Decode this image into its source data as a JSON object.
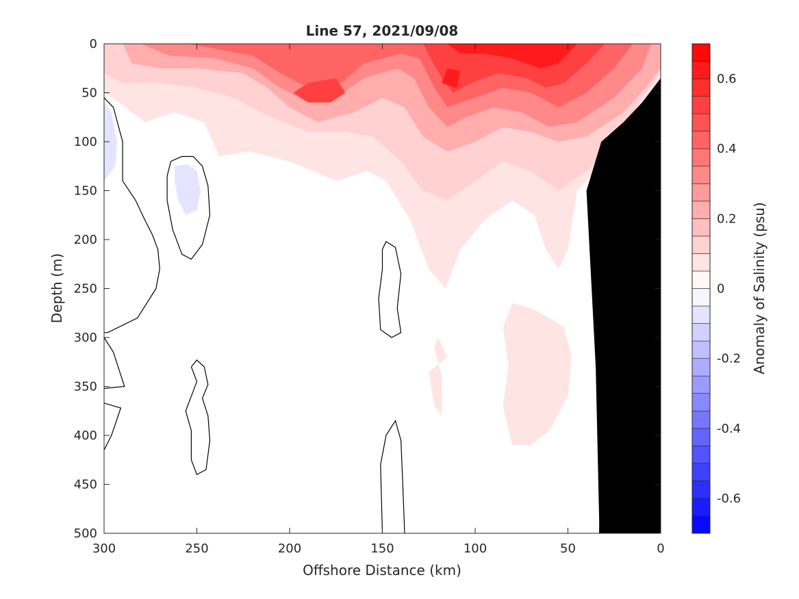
{
  "chart_data": {
    "type": "heatmap",
    "title": "Line 57, 2021/09/08",
    "xlabel": "Offshore Distance (km)",
    "ylabel": "Depth (m)",
    "colorbar_label": "Anomaly of Salinity (psu)",
    "xlim": [
      300,
      0
    ],
    "ylim": [
      500,
      0
    ],
    "x_reversed": true,
    "y_reversed": true,
    "xticks": [
      300,
      250,
      200,
      150,
      100,
      50,
      0
    ],
    "xtick_labels": [
      "300",
      "250",
      "200",
      "150",
      "100",
      "50",
      "0"
    ],
    "yticks": [
      0,
      50,
      100,
      150,
      200,
      250,
      300,
      350,
      400,
      450,
      500
    ],
    "ytick_labels": [
      "0",
      "50",
      "100",
      "150",
      "200",
      "250",
      "300",
      "350",
      "400",
      "450",
      "500"
    ],
    "colorbar": {
      "range": [
        -0.7,
        0.7
      ],
      "step": 0.05,
      "ticks": [
        -0.6,
        -0.4,
        -0.2,
        0,
        0.2,
        0.4,
        0.6
      ],
      "tick_labels": [
        "-0.6",
        "-0.4",
        "-0.2",
        "0",
        "0.2",
        "0.4",
        "0.6"
      ],
      "colormap": "blue-white-red",
      "neg_color": "#0000ff",
      "pos_color": "#ff0000",
      "zero_color": "#ffffff"
    },
    "bathymetry_color": "#000000",
    "contour_color": "#000000",
    "bathymetry": [
      [
        33,
        500
      ],
      [
        35,
        330
      ],
      [
        40,
        150
      ],
      [
        32,
        100
      ],
      [
        20,
        80
      ],
      [
        10,
        60
      ],
      [
        0,
        35
      ],
      [
        0,
        500
      ]
    ],
    "zero_contours": [
      [
        [
          300,
          55
        ],
        [
          295,
          65
        ],
        [
          290,
          100
        ],
        [
          290,
          140
        ],
        [
          283,
          160
        ],
        [
          278,
          180
        ],
        [
          274,
          195
        ],
        [
          271,
          210
        ],
        [
          270,
          230
        ],
        [
          272,
          250
        ],
        [
          282,
          280
        ],
        [
          298,
          295
        ],
        [
          300,
          295
        ]
      ],
      [
        [
          264,
          120
        ],
        [
          258,
          115
        ],
        [
          252,
          115
        ],
        [
          247,
          125
        ],
        [
          244,
          145
        ],
        [
          243,
          175
        ],
        [
          247,
          205
        ],
        [
          253,
          220
        ],
        [
          258,
          215
        ],
        [
          263,
          190
        ],
        [
          266,
          160
        ],
        [
          266,
          135
        ],
        [
          264,
          120
        ]
      ],
      [
        [
          253,
          330
        ],
        [
          250,
          345
        ],
        [
          253,
          360
        ],
        [
          256,
          375
        ],
        [
          253,
          395
        ],
        [
          253,
          425
        ],
        [
          250,
          440
        ],
        [
          245,
          435
        ],
        [
          243,
          405
        ],
        [
          244,
          380
        ],
        [
          247,
          362
        ],
        [
          244,
          348
        ],
        [
          246,
          330
        ],
        [
          250,
          323
        ],
        [
          253,
          330
        ]
      ],
      [
        [
          300,
          300
        ],
        [
          295,
          315
        ],
        [
          289,
          350
        ],
        [
          300,
          352
        ]
      ],
      [
        [
          300,
          367
        ],
        [
          291,
          372
        ],
        [
          296,
          400
        ],
        [
          300,
          415
        ]
      ],
      [
        [
          150,
          210
        ],
        [
          148,
          202
        ],
        [
          143,
          208
        ],
        [
          140,
          235
        ],
        [
          142,
          270
        ],
        [
          140,
          295
        ],
        [
          145,
          300
        ],
        [
          151,
          292
        ],
        [
          152,
          260
        ],
        [
          150,
          230
        ],
        [
          150,
          210
        ]
      ],
      [
        [
          150,
          500
        ],
        [
          151,
          430
        ],
        [
          148,
          400
        ],
        [
          143,
          385
        ],
        [
          140,
          405
        ],
        [
          139,
          450
        ],
        [
          138,
          500
        ]
      ],
      [
        [
          33,
          500
        ],
        [
          32,
          420
        ],
        [
          32,
          300
        ],
        [
          33,
          230
        ],
        [
          32,
          160
        ],
        [
          35,
          120
        ],
        [
          25,
          100
        ],
        [
          18,
          95
        ],
        [
          35,
          120
        ]
      ]
    ],
    "positive_anomaly_regions": [
      {
        "level": 0.05,
        "points": [
          [
            300,
            0
          ],
          [
            0,
            0
          ],
          [
            0,
            35
          ],
          [
            10,
            60
          ],
          [
            18,
            95
          ],
          [
            45,
            150
          ],
          [
            50,
            210
          ],
          [
            55,
            230
          ],
          [
            62,
            210
          ],
          [
            68,
            175
          ],
          [
            80,
            160
          ],
          [
            95,
            180
          ],
          [
            108,
            210
          ],
          [
            116,
            250
          ],
          [
            125,
            230
          ],
          [
            135,
            180
          ],
          [
            148,
            140
          ],
          [
            158,
            130
          ],
          [
            175,
            140
          ],
          [
            200,
            120
          ],
          [
            222,
            110
          ],
          [
            238,
            115
          ],
          [
            246,
            80
          ],
          [
            262,
            70
          ],
          [
            278,
            80
          ],
          [
            292,
            60
          ],
          [
            300,
            50
          ]
        ]
      },
      {
        "level": 0.05,
        "points": [
          [
            60,
            280
          ],
          [
            70,
            270
          ],
          [
            80,
            265
          ],
          [
            85,
            290
          ],
          [
            82,
            330
          ],
          [
            85,
            370
          ],
          [
            80,
            410
          ],
          [
            70,
            410
          ],
          [
            60,
            395
          ],
          [
            50,
            360
          ],
          [
            48,
            320
          ],
          [
            52,
            290
          ],
          [
            60,
            280
          ]
        ]
      },
      {
        "level": 0.05,
        "points": [
          [
            120,
            300
          ],
          [
            115,
            320
          ],
          [
            125,
            335
          ],
          [
            122,
            370
          ],
          [
            118,
            380
          ],
          [
            118,
            340
          ],
          [
            122,
            310
          ],
          [
            120,
            300
          ]
        ]
      },
      {
        "level": 0.1,
        "points": [
          [
            300,
            0
          ],
          [
            0,
            0
          ],
          [
            0,
            30
          ],
          [
            10,
            55
          ],
          [
            20,
            90
          ],
          [
            40,
            130
          ],
          [
            55,
            150
          ],
          [
            70,
            130
          ],
          [
            85,
            120
          ],
          [
            100,
            140
          ],
          [
            115,
            160
          ],
          [
            128,
            150
          ],
          [
            140,
            120
          ],
          [
            155,
            95
          ],
          [
            170,
            90
          ],
          [
            190,
            90
          ],
          [
            210,
            75
          ],
          [
            230,
            55
          ],
          [
            250,
            45
          ],
          [
            270,
            40
          ],
          [
            290,
            40
          ],
          [
            300,
            30
          ]
        ]
      },
      {
        "level": 0.2,
        "points": [
          [
            290,
            0
          ],
          [
            0,
            0
          ],
          [
            0,
            25
          ],
          [
            8,
            45
          ],
          [
            20,
            70
          ],
          [
            40,
            95
          ],
          [
            55,
            100
          ],
          [
            70,
            90
          ],
          [
            85,
            85
          ],
          [
            100,
            100
          ],
          [
            115,
            110
          ],
          [
            128,
            95
          ],
          [
            138,
            65
          ],
          [
            150,
            55
          ],
          [
            165,
            70
          ],
          [
            185,
            80
          ],
          [
            200,
            65
          ],
          [
            212,
            45
          ],
          [
            225,
            30
          ],
          [
            250,
            25
          ],
          [
            270,
            25
          ],
          [
            285,
            20
          ]
        ]
      },
      {
        "level": 0.3,
        "points": [
          [
            280,
            0
          ],
          [
            5,
            0
          ],
          [
            10,
            25
          ],
          [
            25,
            55
          ],
          [
            45,
            80
          ],
          [
            60,
            85
          ],
          [
            75,
            70
          ],
          [
            90,
            65
          ],
          [
            105,
            75
          ],
          [
            115,
            85
          ],
          [
            125,
            65
          ],
          [
            133,
            35
          ],
          [
            142,
            25
          ],
          [
            160,
            35
          ],
          [
            175,
            55
          ],
          [
            190,
            60
          ],
          [
            205,
            45
          ],
          [
            220,
            25
          ],
          [
            240,
            15
          ],
          [
            265,
            12
          ]
        ]
      },
      {
        "level": 0.4,
        "points": [
          [
            255,
            0
          ],
          [
            15,
            0
          ],
          [
            25,
            25
          ],
          [
            40,
            50
          ],
          [
            55,
            65
          ],
          [
            70,
            50
          ],
          [
            85,
            45
          ],
          [
            100,
            55
          ],
          [
            115,
            65
          ],
          [
            122,
            45
          ],
          [
            130,
            15
          ],
          [
            140,
            10
          ],
          [
            160,
            20
          ],
          [
            172,
            40
          ],
          [
            190,
            45
          ],
          [
            205,
            30
          ],
          [
            220,
            12
          ],
          [
            240,
            5
          ]
        ]
      },
      {
        "level": 0.5,
        "points": [
          [
            128,
            0
          ],
          [
            30,
            0
          ],
          [
            40,
            20
          ],
          [
            52,
            40
          ],
          [
            62,
            45
          ],
          [
            72,
            35
          ],
          [
            88,
            30
          ],
          [
            102,
            40
          ],
          [
            112,
            50
          ],
          [
            118,
            35
          ],
          [
            124,
            15
          ]
        ]
      },
      {
        "level": 0.5,
        "points": [
          [
            190,
            40
          ],
          [
            175,
            35
          ],
          [
            170,
            50
          ],
          [
            178,
            60
          ],
          [
            190,
            60
          ],
          [
            198,
            50
          ],
          [
            190,
            40
          ]
        ]
      },
      {
        "level": 0.6,
        "points": [
          [
            115,
            0
          ],
          [
            45,
            0
          ],
          [
            55,
            20
          ],
          [
            65,
            25
          ],
          [
            80,
            15
          ],
          [
            95,
            10
          ],
          [
            108,
            10
          ]
        ]
      },
      {
        "level": 0.6,
        "points": [
          [
            115,
            25
          ],
          [
            108,
            28
          ],
          [
            110,
            45
          ],
          [
            118,
            40
          ],
          [
            115,
            25
          ]
        ]
      }
    ],
    "negative_anomaly_regions": [
      {
        "level": -0.05,
        "points": [
          [
            300,
            60
          ],
          [
            296,
            70
          ],
          [
            293,
            100
          ],
          [
            294,
            125
          ],
          [
            300,
            140
          ]
        ]
      },
      {
        "level": -0.05,
        "points": [
          [
            262,
            125
          ],
          [
            255,
            123
          ],
          [
            250,
            130
          ],
          [
            248,
            150
          ],
          [
            250,
            170
          ],
          [
            256,
            175
          ],
          [
            260,
            160
          ],
          [
            262,
            140
          ],
          [
            262,
            125
          ]
        ]
      }
    ]
  }
}
